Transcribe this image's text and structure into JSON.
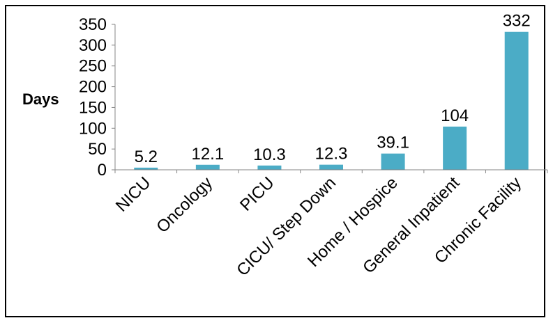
{
  "chart_data": {
    "type": "bar",
    "categories": [
      "NICU",
      "Oncology",
      "PICU",
      "CICU/ Step Down",
      "Home / Hospice",
      "General Inpatient",
      "Chronic Facility"
    ],
    "values": [
      5.2,
      12.1,
      10.3,
      12.3,
      39.1,
      104,
      332
    ],
    "data_labels": [
      "5.2",
      "12.1",
      "10.3",
      "12.3",
      "39.1",
      "104",
      "332"
    ],
    "ylabel": "Days",
    "xlabel": "",
    "title": "",
    "ylim": [
      0,
      350
    ],
    "yticks": [
      "0",
      "50",
      "100",
      "150",
      "200",
      "250",
      "300",
      "350"
    ],
    "bar_color": "#4bacc6",
    "grid": false,
    "legend": "none"
  }
}
